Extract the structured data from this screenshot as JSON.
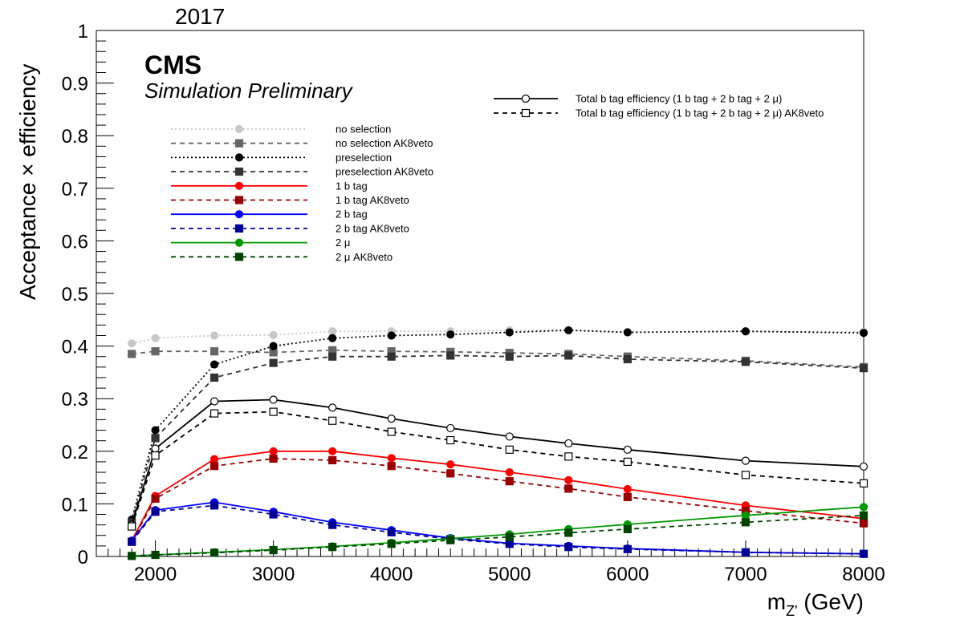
{
  "header": {
    "year": "2017"
  },
  "cms": {
    "title": "CMS",
    "subtitle": "Simulation Preliminary"
  },
  "chart_data": {
    "type": "line",
    "title": "",
    "xlabel": "m_Z' (GeV)",
    "xlabel_main": "m",
    "xlabel_sub": "Z'",
    "xlabel_unit": " (GeV)",
    "ylabel": "Acceptance × efficiency",
    "xlim": [
      1500,
      8000
    ],
    "ylim": [
      0,
      1
    ],
    "x_ticks": [
      "2000",
      "3000",
      "4000",
      "5000",
      "6000",
      "7000",
      "8000"
    ],
    "y_ticks": [
      "0",
      "0.1",
      "0.2",
      "0.3",
      "0.4",
      "0.5",
      "0.6",
      "0.7",
      "0.8",
      "0.9",
      "1"
    ],
    "x": [
      1800,
      2000,
      2500,
      3000,
      3500,
      4000,
      4500,
      5000,
      5500,
      6000,
      7000,
      8000
    ],
    "legend_placement": "upper-left",
    "series": [
      {
        "name": "no selection",
        "color": "#c8c8c8",
        "dash": "dotted",
        "marker": "circle",
        "filled": true,
        "values": [
          0.405,
          0.415,
          0.42,
          0.421,
          0.428,
          0.428,
          0.428,
          0.43,
          0.43,
          0.427,
          0.428,
          0.427
        ]
      },
      {
        "name": "no selection AK8veto",
        "color": "#666666",
        "dash": "dashed",
        "marker": "square",
        "filled": true,
        "values": [
          0.385,
          0.39,
          0.39,
          0.388,
          0.392,
          0.39,
          0.389,
          0.387,
          0.385,
          0.38,
          0.372,
          0.36
        ]
      },
      {
        "name": "preselection",
        "color": "#000000",
        "dash": "dotted",
        "marker": "circle",
        "filled": true,
        "values": [
          0.07,
          0.24,
          0.365,
          0.4,
          0.415,
          0.42,
          0.422,
          0.426,
          0.43,
          0.426,
          0.428,
          0.425
        ]
      },
      {
        "name": "preselection AK8veto",
        "color": "#333333",
        "dash": "dashed",
        "marker": "square",
        "filled": true,
        "values": [
          0.065,
          0.225,
          0.34,
          0.368,
          0.38,
          0.38,
          0.382,
          0.38,
          0.382,
          0.375,
          0.37,
          0.358
        ]
      },
      {
        "name": "1 b tag",
        "color": "#ff0000",
        "dash": "solid",
        "marker": "circle",
        "filled": true,
        "values": [
          0.03,
          0.115,
          0.185,
          0.2,
          0.2,
          0.187,
          0.175,
          0.16,
          0.145,
          0.128,
          0.097,
          0.072
        ]
      },
      {
        "name": "1 b tag AK8veto",
        "color": "#990000",
        "dash": "dashed",
        "marker": "square",
        "filled": true,
        "values": [
          0.028,
          0.11,
          0.172,
          0.186,
          0.183,
          0.172,
          0.158,
          0.143,
          0.129,
          0.113,
          0.087,
          0.063
        ]
      },
      {
        "name": "2 b tag",
        "color": "#0000ff",
        "dash": "solid",
        "marker": "circle",
        "filled": true,
        "values": [
          0.03,
          0.088,
          0.103,
          0.085,
          0.065,
          0.05,
          0.035,
          0.025,
          0.02,
          0.015,
          0.008,
          0.005
        ]
      },
      {
        "name": "2 b tag AK8veto",
        "color": "#000099",
        "dash": "dashed",
        "marker": "square",
        "filled": true,
        "values": [
          0.028,
          0.085,
          0.097,
          0.08,
          0.06,
          0.046,
          0.033,
          0.024,
          0.018,
          0.014,
          0.008,
          0.005
        ]
      },
      {
        "name": "2 μ",
        "color": "#009900",
        "dash": "solid",
        "marker": "circle",
        "filled": true,
        "values": [
          0.001,
          0.003,
          0.008,
          0.013,
          0.019,
          0.026,
          0.034,
          0.042,
          0.052,
          0.061,
          0.078,
          0.094
        ]
      },
      {
        "name": "2 μ AK8veto",
        "color": "#004400",
        "dash": "dashed",
        "marker": "square",
        "filled": true,
        "values": [
          0.001,
          0.003,
          0.007,
          0.012,
          0.018,
          0.024,
          0.031,
          0.037,
          0.045,
          0.052,
          0.065,
          0.078
        ]
      },
      {
        "name": "Total b tag efficiency (1 b tag + 2 b tag + 2      μ)",
        "color": "#000000",
        "dash": "solid",
        "marker": "circle",
        "filled": false,
        "values": [
          0.06,
          0.205,
          0.295,
          0.298,
          0.283,
          0.262,
          0.244,
          0.228,
          0.215,
          0.203,
          0.182,
          0.171
        ]
      },
      {
        "name": "Total b tag efficiency (1 b tag + 2 b tag + 2      μ) AK8veto",
        "color": "#000000",
        "dash": "dashed",
        "marker": "square",
        "filled": false,
        "values": [
          0.057,
          0.192,
          0.272,
          0.275,
          0.258,
          0.237,
          0.221,
          0.203,
          0.19,
          0.18,
          0.155,
          0.139
        ]
      }
    ]
  }
}
